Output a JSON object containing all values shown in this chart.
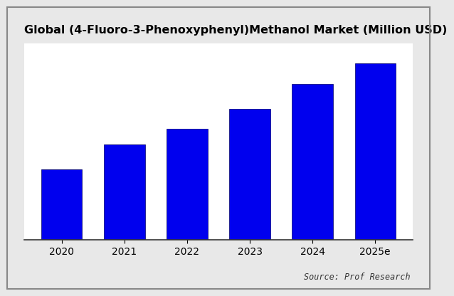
{
  "title": "Global (4-Fluoro-3-Phenoxyphenyl)Methanol Market (Million USD)",
  "categories": [
    "2020",
    "2021",
    "2022",
    "2023",
    "2024",
    "2025e"
  ],
  "values": [
    28,
    38,
    44,
    52,
    62,
    70
  ],
  "bar_color": "#0000EE",
  "background_color": "#e8e8e8",
  "plot_background": "#ffffff",
  "source_text": "Source: Prof Research",
  "title_fontsize": 11.5,
  "tick_fontsize": 10,
  "source_fontsize": 8.5,
  "ylim": [
    0,
    78
  ],
  "bar_width": 0.65
}
